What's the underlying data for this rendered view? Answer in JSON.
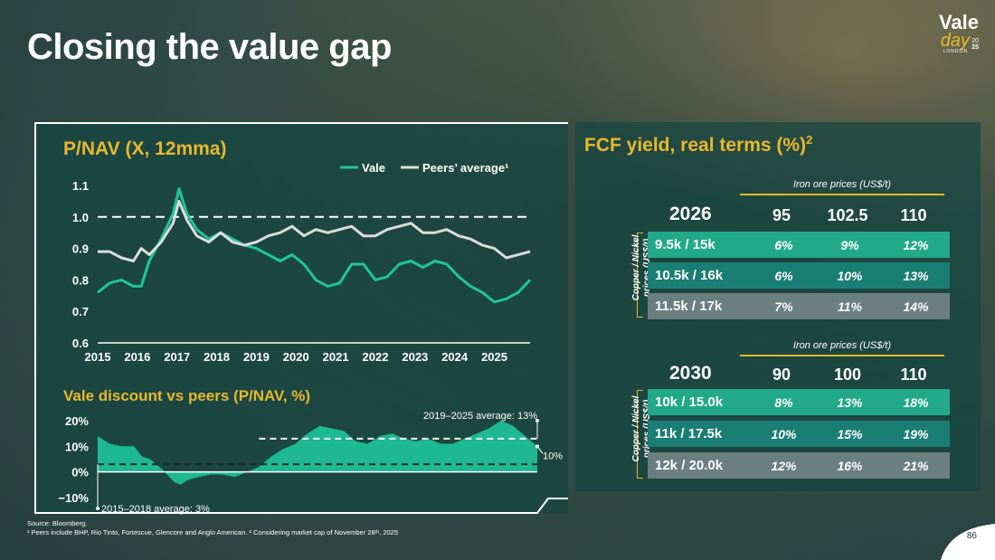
{
  "title": "Closing the value gap",
  "logo": {
    "word1": "Vale",
    "word2": "day",
    "place": "LONDON",
    "year_top": "20",
    "year_bottom": "25"
  },
  "colors": {
    "accent": "#e8b82c",
    "vale": "#21c49a",
    "peers": "#dddddd",
    "area": "#1fbf98"
  },
  "chart_data": [
    {
      "type": "line",
      "title": "P/NAV (X, 12mma)",
      "legend": [
        "Vale",
        "Peers’ average¹"
      ],
      "x_ticks": [
        "2015",
        "2016",
        "2017",
        "2018",
        "2019",
        "2020",
        "2021",
        "2022",
        "2023",
        "2024",
        "2025"
      ],
      "y_ticks": [
        "1.1",
        "1.0",
        "0.9",
        "0.8",
        "0.7",
        "0.6"
      ],
      "ylim": [
        0.6,
        1.1
      ],
      "xlim": [
        2015,
        2025.9
      ],
      "reference_line": 1.0,
      "series": [
        {
          "name": "Vale",
          "x": [
            2015.0,
            2015.3,
            2015.6,
            2015.9,
            2016.1,
            2016.3,
            2016.6,
            2016.9,
            2017.05,
            2017.25,
            2017.5,
            2017.8,
            2018.1,
            2018.4,
            2018.7,
            2019.0,
            2019.3,
            2019.6,
            2019.9,
            2020.2,
            2020.5,
            2020.8,
            2021.1,
            2021.4,
            2021.7,
            2022.0,
            2022.3,
            2022.6,
            2022.9,
            2023.2,
            2023.5,
            2023.8,
            2024.1,
            2024.4,
            2024.7,
            2025.0,
            2025.3,
            2025.6,
            2025.9
          ],
          "values": [
            0.76,
            0.79,
            0.8,
            0.78,
            0.78,
            0.86,
            0.93,
            1.01,
            1.09,
            1.01,
            0.96,
            0.93,
            0.95,
            0.93,
            0.91,
            0.9,
            0.88,
            0.86,
            0.88,
            0.85,
            0.8,
            0.78,
            0.79,
            0.85,
            0.85,
            0.8,
            0.81,
            0.85,
            0.86,
            0.84,
            0.86,
            0.85,
            0.81,
            0.78,
            0.76,
            0.73,
            0.74,
            0.76,
            0.8
          ]
        },
        {
          "name": "Peers’ average¹",
          "x": [
            2015.0,
            2015.3,
            2015.6,
            2015.9,
            2016.1,
            2016.3,
            2016.6,
            2016.9,
            2017.05,
            2017.25,
            2017.5,
            2017.8,
            2018.1,
            2018.4,
            2018.7,
            2019.0,
            2019.3,
            2019.6,
            2019.9,
            2020.2,
            2020.5,
            2020.8,
            2021.1,
            2021.4,
            2021.7,
            2022.0,
            2022.3,
            2022.6,
            2022.9,
            2023.2,
            2023.5,
            2023.8,
            2024.1,
            2024.4,
            2024.7,
            2025.0,
            2025.3,
            2025.6,
            2025.9
          ],
          "values": [
            0.89,
            0.89,
            0.87,
            0.86,
            0.9,
            0.88,
            0.92,
            0.98,
            1.05,
            0.99,
            0.94,
            0.92,
            0.95,
            0.92,
            0.91,
            0.92,
            0.94,
            0.95,
            0.97,
            0.94,
            0.96,
            0.95,
            0.96,
            0.97,
            0.94,
            0.94,
            0.96,
            0.97,
            0.98,
            0.95,
            0.95,
            0.96,
            0.94,
            0.93,
            0.91,
            0.9,
            0.87,
            0.88,
            0.89
          ]
        }
      ]
    },
    {
      "type": "area",
      "title": "Vale discount vs peers (P/NAV, %)",
      "y_ticks": [
        "20%",
        "10%",
        "0%",
        "−10%"
      ],
      "ylim": [
        -10,
        20
      ],
      "xlim": [
        2015,
        2025.9
      ],
      "series": [
        {
          "name": "Vale discount",
          "x": [
            2015.0,
            2015.3,
            2015.6,
            2015.9,
            2016.1,
            2016.3,
            2016.6,
            2016.9,
            2017.05,
            2017.25,
            2017.5,
            2017.8,
            2018.1,
            2018.4,
            2018.7,
            2019.0,
            2019.3,
            2019.6,
            2019.9,
            2020.2,
            2020.5,
            2020.8,
            2021.1,
            2021.4,
            2021.7,
            2022.0,
            2022.3,
            2022.6,
            2022.9,
            2023.2,
            2023.5,
            2023.8,
            2024.1,
            2024.4,
            2024.7,
            2025.0,
            2025.3,
            2025.6,
            2025.9
          ],
          "values": [
            14,
            11,
            10,
            10,
            6,
            5,
            1,
            -4,
            -5,
            -3,
            -2,
            -1,
            -1,
            -2,
            0,
            2,
            6,
            9,
            11,
            15,
            18,
            17,
            16,
            12,
            11,
            14,
            15,
            13,
            12,
            13,
            11,
            11,
            13,
            15,
            17,
            20,
            18,
            14,
            10
          ]
        }
      ],
      "reference_lines": [
        {
          "value": 13,
          "label": "2019–2025 average: 13%",
          "from": 2019
        },
        {
          "value": 3,
          "label": "2015–2018 average: 3%",
          "from": 2015
        }
      ],
      "end_label": "10%"
    }
  ],
  "fcf": {
    "title": "FCF yield, real terms (%)",
    "title_sup": "2",
    "tables": [
      {
        "iron_label": "Iron ore prices (US$/t)",
        "year": "2026",
        "prices": [
          "95",
          "102.5",
          "110"
        ],
        "side_label": "Copper / Nickel prices (US$/t)",
        "rows": [
          {
            "label": "9.5k / 15k",
            "values": [
              "6%",
              "9%",
              "12%"
            ]
          },
          {
            "label": "10.5k / 16k",
            "values": [
              "6%",
              "10%",
              "13%"
            ]
          },
          {
            "label": "11.5k / 17k",
            "values": [
              "7%",
              "11%",
              "14%"
            ]
          }
        ]
      },
      {
        "iron_label": "Iron ore prices (US$/t)",
        "year": "2030",
        "prices": [
          "90",
          "100",
          "110"
        ],
        "side_label": "Copper / Nickel prices (US$/t)",
        "rows": [
          {
            "label": "10k / 15.0k",
            "values": [
              "8%",
              "13%",
              "18%"
            ]
          },
          {
            "label": "11k / 17.5k",
            "values": [
              "10%",
              "15%",
              "19%"
            ]
          },
          {
            "label": "12k / 20.0k",
            "values": [
              "12%",
              "16%",
              "21%"
            ]
          }
        ]
      }
    ]
  },
  "footer": {
    "source": "Source: Bloomberg.",
    "notes": "¹ Peers include BHP, Rio Tinto, Fortescue, Glencore and Anglo American. ² Considering market cap of November 28ᵗʰ, 2025"
  },
  "page_number": "86"
}
